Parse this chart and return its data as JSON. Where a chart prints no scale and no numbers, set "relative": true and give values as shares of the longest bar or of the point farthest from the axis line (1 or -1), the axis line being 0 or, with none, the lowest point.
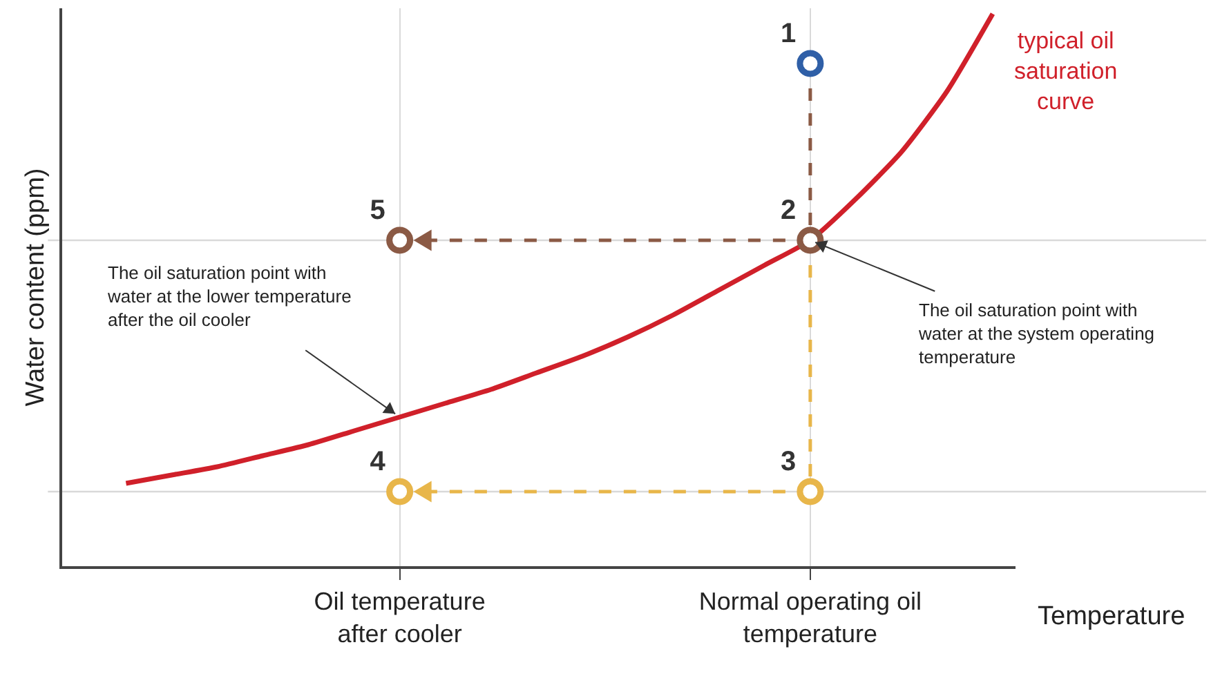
{
  "chart_data": {
    "type": "line",
    "relative": true,
    "xlabel": "Temperature",
    "ylabel": "Water content (ppm)",
    "categories": [
      null,
      null,
      null,
      null,
      null,
      null,
      "Oil temperature after cooler",
      null,
      null,
      null,
      null,
      null,
      null,
      null,
      null,
      "Normal operating oil temperature",
      null,
      null,
      null,
      null
    ],
    "series": [
      {
        "type": "line",
        "color": "#8b5a45",
        "line_style": "dashed",
        "marker": "none",
        "x": [
          "Normal operating oil temperature",
          "Normal operating oil temperature"
        ],
        "values": [
          0.91,
          0.59
        ]
      },
      {
        "type": "line",
        "color": "#8b5a45",
        "line_style": "dashed",
        "marker": "none",
        "x": [
          "Normal operating oil temperature",
          "Oil temperature after cooler"
        ],
        "values": [
          0.59,
          0.59
        ]
      },
      {
        "type": "line",
        "color": "#e8b64a",
        "line_style": "dashed",
        "marker": "none",
        "x": [
          "Normal operating oil temperature",
          "Normal operating oil temperature"
        ],
        "values": [
          0.59,
          0.135
        ]
      },
      {
        "type": "line",
        "color": "#e8b64a",
        "line_style": "dashed",
        "marker": "none",
        "x": [
          "Normal operating oil temperature",
          "Oil temperature after cooler"
        ],
        "values": [
          0.135,
          0.135
        ]
      },
      {
        "name": "typical oil saturation curve",
        "color": "#d0202a",
        "line_style": "solid",
        "marker": "none",
        "values": [
          0.15,
          0.165,
          0.18,
          0.2,
          0.22,
          0.245,
          0.27,
          0.295,
          0.32,
          0.35,
          0.38,
          0.415,
          0.455,
          0.5,
          0.545,
          0.59,
          0.665,
          0.75,
          0.86,
          1
        ]
      },
      {
        "type": "scatter",
        "name": "1",
        "color": "#2f5fa7",
        "marker": "circle",
        "x": [
          "Normal operating oil temperature"
        ],
        "values": [
          0.91
        ]
      },
      {
        "type": "scatter",
        "name": "2",
        "color": "#8b5a45",
        "marker": "circle",
        "x": [
          "Normal operating oil temperature"
        ],
        "values": [
          0.59
        ]
      },
      {
        "type": "scatter",
        "name": "3",
        "color": "#e8b64a",
        "marker": "circle",
        "x": [
          "Normal operating oil temperature"
        ],
        "values": [
          0.135
        ]
      },
      {
        "type": "scatter",
        "name": "4",
        "color": "#e8b64a",
        "marker": "circle",
        "x": [
          "Oil temperature after cooler"
        ],
        "values": [
          0.135
        ]
      },
      {
        "type": "scatter",
        "name": "5",
        "color": "#8b5a45",
        "marker": "circle",
        "x": [
          "Oil temperature after cooler"
        ],
        "values": [
          0.59
        ]
      }
    ],
    "annotations": [
      {
        "text": "The oil saturation point with water at the lower temperature after the oil cooler",
        "x": "Oil temperature after cooler",
        "y": 0.27
      },
      {
        "text": "The oil saturation point with water at the system operating temperature",
        "x": "Normal operating oil temperature",
        "y": 0.59
      }
    ],
    "ref_lines": [
      {
        "axis": "y",
        "value": 0.59,
        "color": "#d9d9d9"
      },
      {
        "axis": "y",
        "value": 0.135,
        "color": "#d9d9d9"
      }
    ],
    "grid": "x",
    "legend": false
  }
}
